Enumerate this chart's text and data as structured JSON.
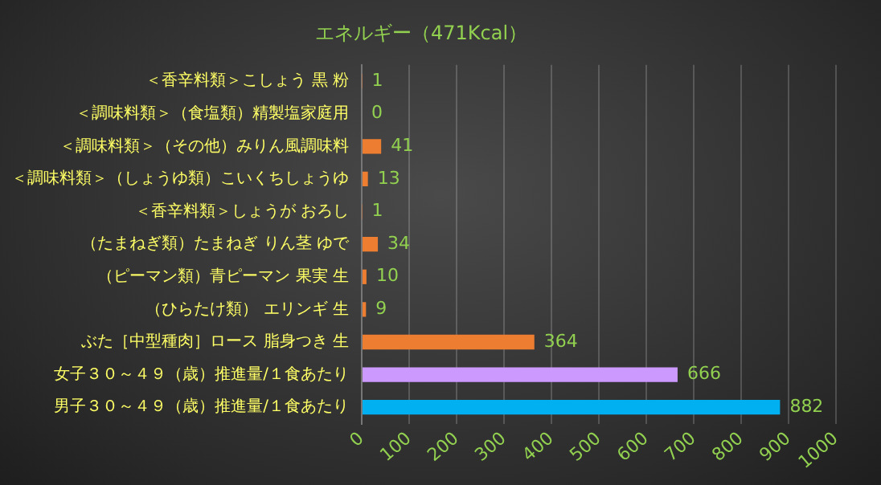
{
  "chart_data": {
    "type": "bar",
    "orientation": "horizontal",
    "title": "エネルギー（471Kcal）",
    "categories": [
      "＜香辛料類＞こしょう 黒 粉",
      "＜調味料類＞（食塩類）精製塩家庭用",
      "＜調味料類＞（その他）みりん風調味料",
      "＜調味料類＞（しょうゆ類）こいくちしょうゆ",
      "＜香辛料類＞しょうが おろし",
      "（たまねぎ類）たまねぎ りん茎 ゆで",
      "（ピーマン類）青ピーマン 果実 生",
      "（ひらたけ類） エリンギ 生",
      "ぶた［中型種肉］ロース 脂身つき 生",
      "女子３０～４９（歳）推進量/１食あたり",
      "男子３０～４９（歳）推進量/１食あたり"
    ],
    "values": [
      1,
      0,
      41,
      13,
      1,
      34,
      10,
      9,
      364,
      666,
      882
    ],
    "colors": [
      "#ed7d31",
      "#ed7d31",
      "#ed7d31",
      "#ed7d31",
      "#ed7d31",
      "#ed7d31",
      "#ed7d31",
      "#ed7d31",
      "#ed7d31",
      "#cc99ff",
      "#00b0f0"
    ],
    "xlim": [
      0,
      1000
    ],
    "xticks": [
      0,
      100,
      200,
      300,
      400,
      500,
      600,
      700,
      800,
      900,
      1000
    ],
    "grid": "x",
    "data_labels": true
  }
}
